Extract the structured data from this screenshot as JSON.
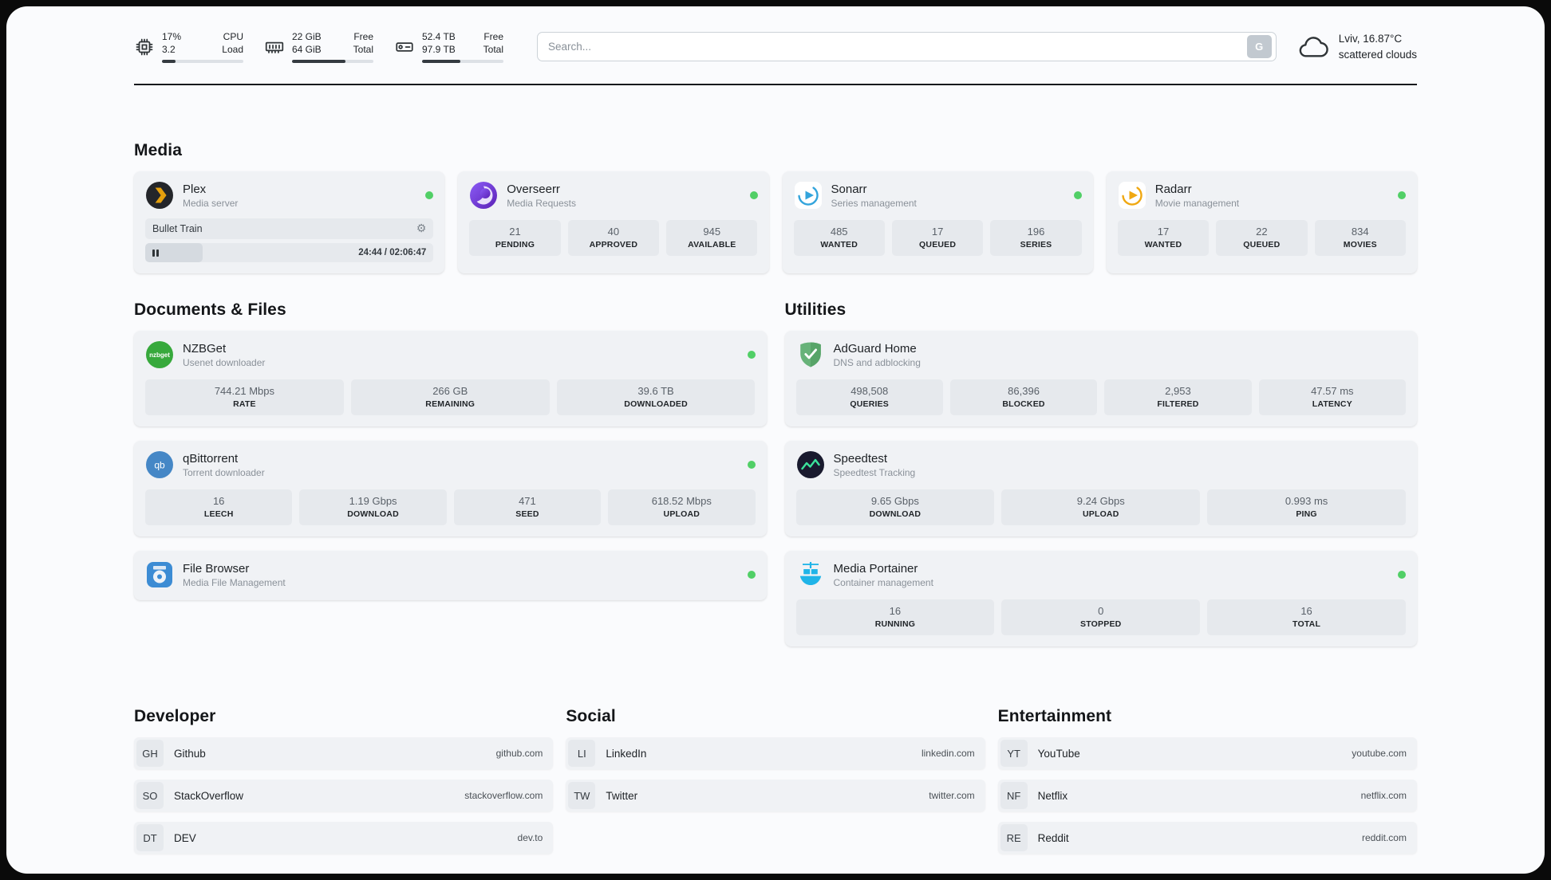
{
  "colors": {
    "status_online": "#51cf66",
    "card_bg": "#f0f2f5",
    "stat_bg": "#e6e9ed"
  },
  "topbar": {
    "cpu": {
      "line1": "17%",
      "line2": "3.2",
      "label1": "CPU",
      "label2": "Load",
      "percent": 17
    },
    "ram": {
      "line1": "22 GiB",
      "line2": "64 GiB",
      "label1": "Free",
      "label2": "Total",
      "percent": 66
    },
    "disk": {
      "line1": "52.4 TB",
      "line2": "97.9 TB",
      "label1": "Free",
      "label2": "Total",
      "percent": 47
    },
    "search": {
      "placeholder": "Search...",
      "button_label": "G"
    },
    "weather": {
      "location": "Lviv, 16.87°C",
      "condition": "scattered clouds"
    }
  },
  "icons": {
    "settings_glyph": "⚙"
  },
  "sections": {
    "media": {
      "title": "Media"
    },
    "documents": {
      "title": "Documents & Files"
    },
    "utilities": {
      "title": "Utilities"
    },
    "developer": {
      "title": "Developer"
    },
    "social": {
      "title": "Social"
    },
    "entertainment": {
      "title": "Entertainment"
    }
  },
  "apps": {
    "plex": {
      "name": "Plex",
      "desc": "Media server",
      "online": true,
      "now_playing": "Bullet Train",
      "time": "24:44 / 02:06:47",
      "progress_percent": 20
    },
    "overseerr": {
      "name": "Overseerr",
      "desc": "Media Requests",
      "online": true,
      "stats": [
        {
          "value": "21",
          "label": "PENDING"
        },
        {
          "value": "40",
          "label": "APPROVED"
        },
        {
          "value": "945",
          "label": "AVAILABLE"
        }
      ]
    },
    "sonarr": {
      "name": "Sonarr",
      "desc": "Series management",
      "online": true,
      "stats": [
        {
          "value": "485",
          "label": "WANTED"
        },
        {
          "value": "17",
          "label": "QUEUED"
        },
        {
          "value": "196",
          "label": "SERIES"
        }
      ]
    },
    "radarr": {
      "name": "Radarr",
      "desc": "Movie management",
      "online": true,
      "stats": [
        {
          "value": "17",
          "label": "WANTED"
        },
        {
          "value": "22",
          "label": "QUEUED"
        },
        {
          "value": "834",
          "label": "MOVIES"
        }
      ]
    },
    "nzbget": {
      "name": "NZBGet",
      "desc": "Usenet downloader",
      "online": true,
      "icon_text": "nzbget",
      "stats": [
        {
          "value": "744.21 Mbps",
          "label": "RATE"
        },
        {
          "value": "266 GB",
          "label": "REMAINING"
        },
        {
          "value": "39.6 TB",
          "label": "DOWNLOADED"
        }
      ]
    },
    "qbittorrent": {
      "name": "qBittorrent",
      "desc": "Torrent downloader",
      "online": true,
      "icon_text": "qb",
      "stats": [
        {
          "value": "16",
          "label": "LEECH"
        },
        {
          "value": "1.19 Gbps",
          "label": "DOWNLOAD"
        },
        {
          "value": "471",
          "label": "SEED"
        },
        {
          "value": "618.52 Mbps",
          "label": "UPLOAD"
        }
      ]
    },
    "filebrowser": {
      "name": "File Browser",
      "desc": "Media File Management",
      "online": true
    },
    "adguard": {
      "name": "AdGuard Home",
      "desc": "DNS and adblocking",
      "online": false,
      "stats": [
        {
          "value": "498,508",
          "label": "QUERIES"
        },
        {
          "value": "86,396",
          "label": "BLOCKED"
        },
        {
          "value": "2,953",
          "label": "FILTERED"
        },
        {
          "value": "47.57 ms",
          "label": "LATENCY"
        }
      ]
    },
    "speedtest": {
      "name": "Speedtest",
      "desc": "Speedtest Tracking",
      "online": false,
      "stats": [
        {
          "value": "9.65 Gbps",
          "label": "DOWNLOAD"
        },
        {
          "value": "9.24 Gbps",
          "label": "UPLOAD"
        },
        {
          "value": "0.993 ms",
          "label": "PING"
        }
      ]
    },
    "portainer": {
      "name": "Media Portainer",
      "desc": "Container management",
      "online": true,
      "stats": [
        {
          "value": "16",
          "label": "RUNNING"
        },
        {
          "value": "0",
          "label": "STOPPED"
        },
        {
          "value": "16",
          "label": "TOTAL"
        }
      ]
    }
  },
  "bookmarks": {
    "developer": [
      {
        "abbr": "GH",
        "name": "Github",
        "url": "github.com"
      },
      {
        "abbr": "SO",
        "name": "StackOverflow",
        "url": "stackoverflow.com"
      },
      {
        "abbr": "DT",
        "name": "DEV",
        "url": "dev.to"
      }
    ],
    "social": [
      {
        "abbr": "LI",
        "name": "LinkedIn",
        "url": "linkedin.com"
      },
      {
        "abbr": "TW",
        "name": "Twitter",
        "url": "twitter.com"
      }
    ],
    "entertainment": [
      {
        "abbr": "YT",
        "name": "YouTube",
        "url": "youtube.com"
      },
      {
        "abbr": "NF",
        "name": "Netflix",
        "url": "netflix.com"
      },
      {
        "abbr": "RE",
        "name": "Reddit",
        "url": "reddit.com"
      }
    ]
  }
}
